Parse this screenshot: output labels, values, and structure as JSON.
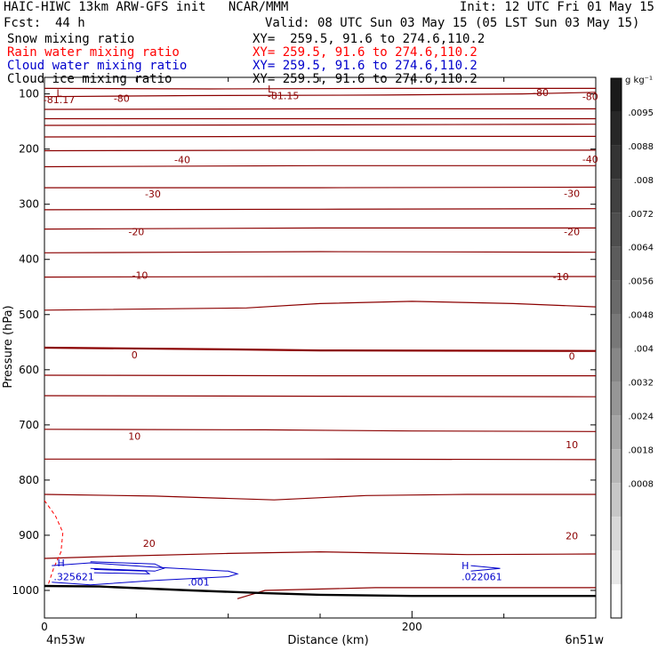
{
  "header": {
    "title_left": "HAIC-HIWC 13km ARW-GFS init   NCAR/MMM",
    "init": "Init: 12 UTC Fri 01 May 15",
    "fcst_label": "Fcst:",
    "fcst_value": "44 h",
    "valid": "Valid: 08 UTC Sun 03 May 15 (05 LST Sun 03 May 15)"
  },
  "legend": [
    {
      "label": "Snow mixing ratio",
      "xy": "XY=  259.5, 91.6 to 274.6,110.2",
      "color": "#000000"
    },
    {
      "label": "Rain water mixing ratio",
      "xy": "XY= 259.5, 91.6 to 274.6,110.2",
      "color": "#ff0000"
    },
    {
      "label": "Cloud water mixing ratio",
      "xy": "XY= 259.5, 91.6 to 274.6,110.2",
      "color": "#0000cc"
    },
    {
      "label": "Cloud ice mixing ratio",
      "xy": "XY= 259.5, 91.6 to 274.6,110.2",
      "color": "#000000"
    }
  ],
  "chart_data": {
    "type": "contour",
    "xlabel": "Distance (km)",
    "ylabel": "Pressure (hPa)",
    "x_range_km": [
      0,
      300
    ],
    "x_ticks": [
      0,
      200
    ],
    "y_range_hpa": [
      1050,
      70
    ],
    "y_ticks": [
      100,
      200,
      300,
      400,
      500,
      600,
      700,
      800,
      900,
      1000
    ],
    "x_end_labels": {
      "left": "4n53w",
      "right": "6n51w"
    },
    "temperature_contour_color": "#8b0000",
    "temperature_labels": [
      {
        "text": "L",
        "x_km": 8,
        "p_hpa": 98
      },
      {
        "text": "-81.17",
        "x_km": 8,
        "p_hpa": 110
      },
      {
        "text": "-80",
        "x_km": 42,
        "p_hpa": 108
      },
      {
        "text": "L",
        "x_km": 123,
        "p_hpa": 91
      },
      {
        "text": "-81.15",
        "x_km": 130,
        "p_hpa": 103
      },
      {
        "text": "-80",
        "x_km": 270,
        "p_hpa": 97
      },
      {
        "text": "-80",
        "x_km": 297,
        "p_hpa": 105
      },
      {
        "text": "-40",
        "x_km": 75,
        "p_hpa": 219
      },
      {
        "text": "-40",
        "x_km": 297,
        "p_hpa": 218
      },
      {
        "text": "-30",
        "x_km": 59,
        "p_hpa": 281
      },
      {
        "text": "-30",
        "x_km": 287,
        "p_hpa": 280
      },
      {
        "text": "-20",
        "x_km": 50,
        "p_hpa": 350
      },
      {
        "text": "-20",
        "x_km": 287,
        "p_hpa": 350
      },
      {
        "text": "-10",
        "x_km": 52,
        "p_hpa": 429
      },
      {
        "text": "-10",
        "x_km": 281,
        "p_hpa": 431
      },
      {
        "text": "0",
        "x_km": 49,
        "p_hpa": 573
      },
      {
        "text": "0",
        "x_km": 287,
        "p_hpa": 575
      },
      {
        "text": "10",
        "x_km": 49,
        "p_hpa": 720
      },
      {
        "text": "10",
        "x_km": 287,
        "p_hpa": 736
      },
      {
        "text": "20",
        "x_km": 57,
        "p_hpa": 915
      },
      {
        "text": "20",
        "x_km": 287,
        "p_hpa": 901
      }
    ],
    "temperature_contours": [
      {
        "pts": [
          [
            0,
            90
          ],
          [
            90,
            91
          ],
          [
            185,
            90
          ],
          [
            300,
            90
          ]
        ]
      },
      {
        "pts": [
          [
            0,
            105
          ],
          [
            80,
            103
          ],
          [
            185,
            102
          ],
          [
            260,
            100
          ],
          [
            300,
            97
          ]
        ]
      },
      {
        "pts": [
          [
            0,
            128
          ],
          [
            150,
            127
          ],
          [
            300,
            127
          ]
        ]
      },
      {
        "pts": [
          [
            0,
            145
          ],
          [
            150,
            145
          ],
          [
            300,
            145
          ]
        ]
      },
      {
        "pts": [
          [
            0,
            157
          ],
          [
            150,
            156
          ],
          [
            300,
            155
          ]
        ]
      },
      {
        "pts": [
          [
            0,
            178
          ],
          [
            150,
            177
          ],
          [
            300,
            177
          ]
        ]
      },
      {
        "pts": [
          [
            0,
            203
          ],
          [
            150,
            202
          ],
          [
            300,
            202
          ]
        ]
      },
      {
        "pts": [
          [
            0,
            232
          ],
          [
            150,
            230
          ],
          [
            300,
            230
          ]
        ]
      },
      {
        "pts": [
          [
            0,
            270
          ],
          [
            150,
            270
          ],
          [
            300,
            269
          ]
        ]
      },
      {
        "pts": [
          [
            0,
            310
          ],
          [
            150,
            309
          ],
          [
            300,
            308
          ]
        ]
      },
      {
        "pts": [
          [
            0,
            345
          ],
          [
            150,
            343
          ],
          [
            300,
            343
          ]
        ]
      },
      {
        "pts": [
          [
            0,
            388
          ],
          [
            150,
            386
          ],
          [
            300,
            387
          ]
        ]
      },
      {
        "pts": [
          [
            0,
            432
          ],
          [
            150,
            431
          ],
          [
            300,
            431
          ]
        ]
      },
      {
        "pts": [
          [
            0,
            492
          ],
          [
            110,
            488
          ],
          [
            150,
            480
          ],
          [
            200,
            476
          ],
          [
            255,
            480
          ],
          [
            300,
            486
          ]
        ]
      },
      {
        "pts": [
          [
            0,
            560
          ],
          [
            100,
            563
          ],
          [
            150,
            565
          ],
          [
            300,
            566
          ]
        ],
        "bold": true
      },
      {
        "pts": [
          [
            0,
            610
          ],
          [
            150,
            611
          ],
          [
            300,
            611
          ]
        ]
      },
      {
        "pts": [
          [
            0,
            647
          ],
          [
            150,
            648
          ],
          [
            300,
            649
          ]
        ]
      },
      {
        "pts": [
          [
            0,
            708
          ],
          [
            120,
            709
          ],
          [
            200,
            711
          ],
          [
            300,
            712
          ]
        ]
      },
      {
        "pts": [
          [
            0,
            762
          ],
          [
            150,
            762
          ],
          [
            300,
            763
          ]
        ]
      },
      {
        "pts": [
          [
            0,
            826
          ],
          [
            60,
            829
          ],
          [
            125,
            836
          ],
          [
            175,
            828
          ],
          [
            230,
            826
          ],
          [
            300,
            826
          ]
        ]
      },
      {
        "pts": [
          [
            0,
            942
          ],
          [
            40,
            938
          ],
          [
            100,
            933
          ],
          [
            150,
            930
          ],
          [
            230,
            935
          ],
          [
            300,
            934
          ]
        ]
      },
      {
        "pts": [
          [
            105,
            1015
          ],
          [
            120,
            1000
          ],
          [
            180,
            995
          ],
          [
            300,
            995
          ]
        ]
      }
    ],
    "surface": {
      "pts": [
        [
          0,
          992
        ],
        [
          30,
          993
        ],
        [
          80,
          1000
        ],
        [
          120,
          1005
        ],
        [
          150,
          1008
        ],
        [
          200,
          1010
        ],
        [
          300,
          1010
        ]
      ],
      "color": "#000000"
    },
    "rain_boundary": {
      "pts": [
        [
          0,
          837
        ],
        [
          6,
          865
        ],
        [
          10,
          895
        ],
        [
          9,
          930
        ],
        [
          5,
          960
        ],
        [
          2,
          990
        ]
      ],
      "color": "#ff0000"
    },
    "cloud_water": {
      "color": "#0000cc",
      "labels": [
        {
          "text": "H",
          "x_km": 7,
          "p_hpa": 950
        },
        {
          "text": ".325621",
          "x_km": 5,
          "p_hpa": 975
        },
        {
          "text": ".001",
          "x_km": 78,
          "p_hpa": 985
        },
        {
          "text": "H",
          "x_km": 227,
          "p_hpa": 955
        },
        {
          "text": ".022061",
          "x_km": 227,
          "p_hpa": 975
        }
      ],
      "contours": [
        {
          "pts": [
            [
              4,
              955
            ],
            [
              25,
              950
            ],
            [
              60,
              958
            ],
            [
              100,
              965
            ],
            [
              105,
              970
            ],
            [
              100,
              975
            ],
            [
              60,
              982
            ],
            [
              25,
              990
            ],
            [
              4,
              985
            ]
          ]
        },
        {
          "pts": [
            [
              25,
              948
            ],
            [
              60,
              952
            ],
            [
              65,
              960
            ],
            [
              60,
              965
            ],
            [
              25,
              960
            ]
          ]
        },
        {
          "pts": [
            [
              27,
              962
            ],
            [
              55,
              965
            ],
            [
              57,
              970
            ],
            [
              27,
              968
            ]
          ]
        },
        {
          "pts": [
            [
              232,
              955
            ],
            [
              248,
              960
            ],
            [
              232,
              965
            ]
          ]
        }
      ]
    },
    "colorbar": {
      "unit": "g kg⁻¹",
      "labels": [
        ".0095",
        ".0088",
        ".008",
        ".0072",
        ".0064",
        ".0056",
        ".0048",
        ".004",
        ".0032",
        ".0024",
        ".0018",
        ".0008"
      ],
      "colors": [
        "#1a1a1a",
        "#272727",
        "#343434",
        "#414141",
        "#4e4e4e",
        "#5c5c5c",
        "#6a6a6a",
        "#787878",
        "#878787",
        "#969696",
        "#a6a6a6",
        "#b6b6b6",
        "#c7c7c7",
        "#d8d8d8",
        "#e8e8e8",
        "#ffffff"
      ]
    }
  }
}
